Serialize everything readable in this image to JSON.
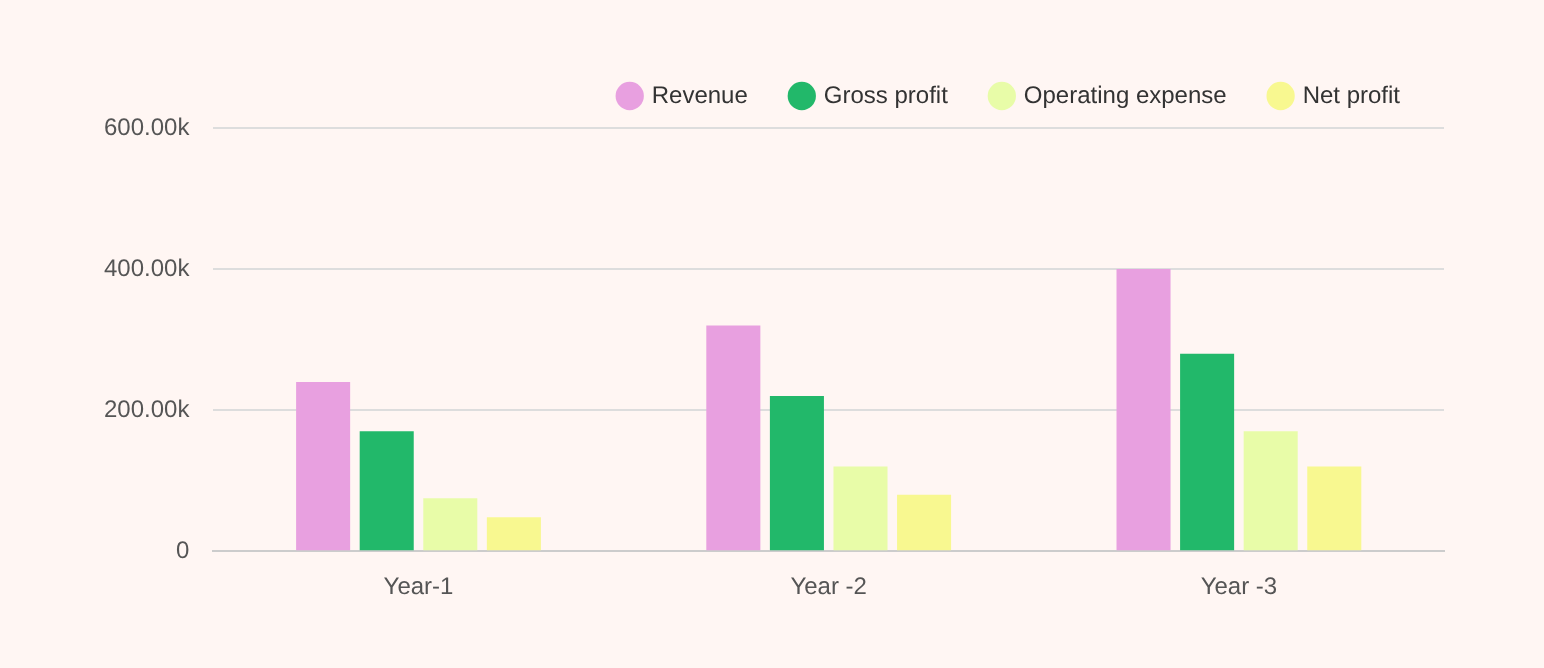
{
  "chart_data": {
    "type": "bar",
    "categories": [
      "Year-1",
      "Year -2",
      "Year -3"
    ],
    "series": [
      {
        "name": "Revenue",
        "color": "#e8a0e0",
        "values": [
          240000,
          320000,
          400000
        ]
      },
      {
        "name": "Gross profit",
        "color": "#22b86a",
        "values": [
          170000,
          220000,
          280000
        ]
      },
      {
        "name": "Operating expense",
        "color": "#e8fca8",
        "values": [
          75000,
          120000,
          170000
        ]
      },
      {
        "name": "Net profit",
        "color": "#f8f890",
        "values": [
          48000,
          80000,
          120000
        ]
      }
    ],
    "ylim": [
      0,
      600000
    ],
    "yticks": [
      0,
      {
        "value": 200000,
        "label": "200.00k"
      },
      {
        "value": 400000,
        "label": "400.00k"
      },
      {
        "value": 600000,
        "label": "600.00k"
      }
    ],
    "grid": "y",
    "legend": "top right"
  }
}
